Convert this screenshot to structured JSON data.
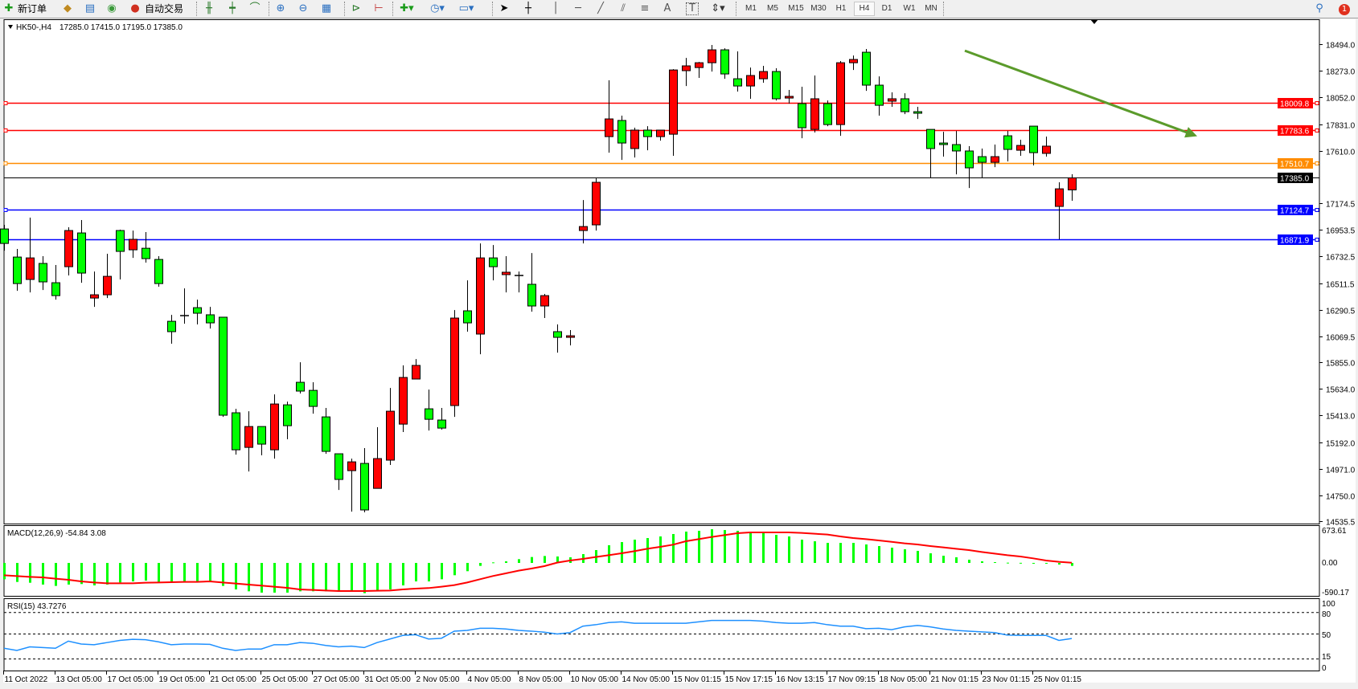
{
  "toolbar": {
    "new_order_label": "新订单",
    "auto_trading_label": "自动交易",
    "timeframes": [
      "M1",
      "M5",
      "M15",
      "M30",
      "H1",
      "H4",
      "D1",
      "W1",
      "MN"
    ],
    "active_timeframe": "H4",
    "notification_count": "1",
    "icons": [
      "new-order-icon",
      "market-watch-icon",
      "navigator-icon",
      "signals-icon",
      "auto-trading-icon",
      "bar-chart-icon",
      "candlestick-icon",
      "line-chart-icon",
      "zoom-in-icon",
      "zoom-out-icon",
      "tile-windows-icon",
      "autoscroll-icon",
      "chart-shift-icon",
      "indicators-icon",
      "periods-icon",
      "templates-icon",
      "cursor-icon",
      "crosshair-icon",
      "vertical-line-icon",
      "horizontal-line-icon",
      "trendline-icon",
      "channel-icon",
      "fibonacci-icon",
      "text-icon",
      "text-label-icon",
      "arrows-icon",
      "search-icon",
      "notification-icon"
    ]
  },
  "chart": {
    "symbol": "HK50-,H4",
    "ohlc_text": "17285.0 17415.0 17195.0 17385.0",
    "colors": {
      "bull": "#ff0000",
      "bear": "#00ff00",
      "macd_hist": "#00ff00",
      "macd_signal": "#ff0000",
      "rsi": "#1e90ff",
      "trend_arrow": "#5b9b2b"
    }
  },
  "chart_data": {
    "type": "candlestick",
    "ohlc": [
      [
        16961,
        16995,
        16781,
        16841
      ],
      [
        16728,
        16795,
        16448,
        16508
      ],
      [
        16542,
        17055,
        16435,
        16721
      ],
      [
        16675,
        16735,
        16455,
        16522
      ],
      [
        16515,
        16662,
        16375,
        16408
      ],
      [
        16648,
        16975,
        16575,
        16948
      ],
      [
        16928,
        17035,
        16515,
        16595
      ],
      [
        16388,
        16608,
        16315,
        16415
      ],
      [
        16415,
        16755,
        16388,
        16568
      ],
      [
        16948,
        16955,
        16542,
        16775
      ],
      [
        16788,
        16948,
        16721,
        16875
      ],
      [
        16801,
        16935,
        16682,
        16715
      ],
      [
        16708,
        16735,
        16482,
        16508
      ],
      [
        16195,
        16248,
        16009,
        16109
      ],
      [
        16242,
        16468,
        16175,
        16242
      ],
      [
        16308,
        16375,
        16169,
        16262
      ],
      [
        16249,
        16315,
        16135,
        16182
      ],
      [
        16229,
        16229,
        15402,
        15416
      ],
      [
        15436,
        15469,
        15089,
        15129
      ],
      [
        15149,
        15449,
        14949,
        15322
      ],
      [
        15322,
        15322,
        15083,
        15176
      ],
      [
        15129,
        15589,
        15056,
        15509
      ],
      [
        15502,
        15529,
        15216,
        15329
      ],
      [
        15689,
        15855,
        15596,
        15616
      ],
      [
        15622,
        15689,
        15429,
        15489
      ],
      [
        15402,
        15476,
        15096,
        15116
      ],
      [
        15096,
        15096,
        14796,
        14883
      ],
      [
        14956,
        15056,
        14616,
        15029
      ],
      [
        15016,
        15143,
        14610,
        14630
      ],
      [
        14809,
        15316,
        14809,
        15056
      ],
      [
        15043,
        15642,
        15003,
        15449
      ],
      [
        15342,
        15829,
        15276,
        15729
      ],
      [
        15716,
        15882,
        15716,
        15829
      ],
      [
        15469,
        15629,
        15289,
        15382
      ],
      [
        15376,
        15476,
        15296,
        15309
      ],
      [
        15496,
        16288,
        15402,
        16222
      ],
      [
        16282,
        16535,
        16109,
        16182
      ],
      [
        16089,
        16841,
        15922,
        16721
      ],
      [
        16721,
        16828,
        16535,
        16648
      ],
      [
        16582,
        16735,
        16435,
        16602
      ],
      [
        16575,
        16608,
        16435,
        16575
      ],
      [
        16502,
        16761,
        16275,
        16322
      ],
      [
        16322,
        16422,
        16222,
        16408
      ],
      [
        16109,
        16169,
        15935,
        16062
      ],
      [
        16062,
        16122,
        15995,
        16075
      ],
      [
        16948,
        17201,
        16841,
        16981
      ],
      [
        16995,
        17388,
        16948,
        17348
      ],
      [
        17727,
        18194,
        17594,
        17874
      ],
      [
        17861,
        17901,
        17534,
        17674
      ],
      [
        17628,
        17801,
        17554,
        17781
      ],
      [
        17781,
        17814,
        17614,
        17727
      ],
      [
        17727,
        17781,
        17694,
        17781
      ],
      [
        17747,
        18287,
        17568,
        18280
      ],
      [
        18274,
        18380,
        18147,
        18314
      ],
      [
        18300,
        18347,
        18214,
        18340
      ],
      [
        18340,
        18487,
        18267,
        18447
      ],
      [
        18447,
        18460,
        18207,
        18247
      ],
      [
        18207,
        18434,
        18101,
        18147
      ],
      [
        18147,
        18300,
        18041,
        18234
      ],
      [
        18207,
        18314,
        18174,
        18267
      ],
      [
        18267,
        18294,
        18027,
        18041
      ],
      [
        18047,
        18114,
        18001,
        18061
      ],
      [
        18001,
        18141,
        17714,
        17801
      ],
      [
        17787,
        18234,
        17761,
        18041
      ],
      [
        18001,
        18027,
        17814,
        17827
      ],
      [
        17827,
        18354,
        17734,
        18340
      ],
      [
        18340,
        18400,
        18280,
        18367
      ],
      [
        18427,
        18454,
        18107,
        18154
      ],
      [
        18154,
        18227,
        17901,
        17987
      ],
      [
        18021,
        18094,
        17974,
        18041
      ],
      [
        18041,
        18087,
        17914,
        17934
      ],
      [
        17934,
        17974,
        17874,
        17921
      ],
      [
        17787,
        17787,
        17388,
        17628
      ],
      [
        17674,
        17767,
        17561,
        17661
      ],
      [
        17661,
        17774,
        17414,
        17608
      ],
      [
        17608,
        17648,
        17301,
        17468
      ],
      [
        17561,
        17628,
        17388,
        17514
      ],
      [
        17514,
        17661,
        17474,
        17561
      ],
      [
        17734,
        17774,
        17521,
        17621
      ],
      [
        17614,
        17701,
        17568,
        17654
      ],
      [
        17814,
        17814,
        17488,
        17594
      ],
      [
        17588,
        17727,
        17561,
        17648
      ],
      [
        17148,
        17348,
        16875,
        17294
      ],
      [
        17285,
        17415,
        17195,
        17385
      ]
    ],
    "price_ticks": [
      "18494.0",
      "18273.0",
      "18052.0",
      "17831.0",
      "17610.0",
      "17174.5",
      "16953.5",
      "16732.5",
      "16511.5",
      "16290.5",
      "16069.5",
      "15855.0",
      "15634.0",
      "15413.0",
      "15192.0",
      "14971.0",
      "14750.0",
      "14535.5"
    ],
    "ylim": [
      14535.5,
      18494.0
    ],
    "time_labels": [
      "11 Oct 2022",
      "13 Oct 05:00",
      "17 Oct 05:00",
      "19 Oct 05:00",
      "21 Oct 05:00",
      "25 Oct 05:00",
      "27 Oct 05:00",
      "31 Oct 05:00",
      "2 Nov 05:00",
      "4 Nov 05:00",
      "8 Nov 05:00",
      "10 Nov 05:00",
      "14 Nov 05:00",
      "15 Nov 01:15",
      "15 Nov 17:15",
      "16 Nov 13:15",
      "17 Nov 09:15",
      "18 Nov 05:00",
      "21 Nov 01:15",
      "23 Nov 01:15",
      "25 Nov 01:15"
    ],
    "levels": [
      {
        "price": 18009.8,
        "label": "18009.8",
        "color": "#ff0000"
      },
      {
        "price": 17783.6,
        "label": "17783.6",
        "color": "#ff0000"
      },
      {
        "price": 17510.7,
        "label": "17510.7",
        "color": "#ff8c00"
      },
      {
        "price": 17385.0,
        "label": "17385.0",
        "color": "#000000"
      },
      {
        "price": 17124.7,
        "label": "17124.7",
        "color": "#0000ff"
      },
      {
        "price": 16871.9,
        "label": "16871.9",
        "color": "#0000ff"
      }
    ],
    "trend_arrow": {
      "start_price": 18440,
      "end_price": 17730
    },
    "macd": {
      "label": "MACD(12,26,9) -54.84 3.08",
      "axis_labels": [
        "673.61",
        "0.00",
        "-590.17"
      ],
      "range": [
        -590.17,
        673.61
      ],
      "histogram": [
        -304,
        -354,
        -369,
        -403,
        -428,
        -403,
        -393,
        -418,
        -403,
        -364,
        -344,
        -329,
        -354,
        -359,
        -354,
        -354,
        -354,
        -428,
        -493,
        -528,
        -553,
        -553,
        -553,
        -528,
        -528,
        -528,
        -528,
        -518,
        -563,
        -528,
        -493,
        -418,
        -344,
        -344,
        -304,
        -229,
        -154,
        -55,
        10,
        30,
        70,
        110,
        129,
        120,
        105,
        164,
        239,
        329,
        388,
        433,
        463,
        493,
        538,
        583,
        598,
        627,
        612,
        598,
        583,
        558,
        523,
        493,
        433,
        403,
        373,
        373,
        373,
        344,
        314,
        284,
        254,
        224,
        179,
        134,
        105,
        60,
        30,
        15,
        5,
        2,
        -5,
        -10,
        -30,
        -54.84
      ],
      "signal": [
        -229,
        -244,
        -259,
        -269,
        -294,
        -314,
        -344,
        -364,
        -379,
        -379,
        -379,
        -369,
        -364,
        -359,
        -354,
        -354,
        -344,
        -364,
        -383,
        -403,
        -423,
        -443,
        -463,
        -493,
        -503,
        -513,
        -523,
        -523,
        -523,
        -518,
        -513,
        -493,
        -478,
        -468,
        -443,
        -413,
        -364,
        -304,
        -244,
        -194,
        -144,
        -105,
        -60,
        5,
        45,
        75,
        110,
        144,
        179,
        219,
        264,
        299,
        339,
        403,
        443,
        483,
        518,
        553,
        568,
        568,
        568,
        568,
        558,
        543,
        528,
        493,
        463,
        443,
        418,
        393,
        364,
        344,
        314,
        289,
        264,
        239,
        204,
        174,
        144,
        120,
        85,
        45,
        20,
        3.08
      ]
    },
    "rsi": {
      "label": "RSI(15) 43.7276",
      "axis_labels": [
        "100",
        "80",
        "50",
        "15",
        "0"
      ],
      "levels": [
        80,
        50,
        15
      ],
      "values": [
        30,
        27,
        32,
        31,
        30,
        40,
        36,
        35,
        38,
        41,
        42.6,
        42,
        39,
        35,
        36,
        36,
        35.5,
        30,
        27,
        29,
        29,
        35,
        35,
        38,
        37,
        34,
        32,
        33,
        31,
        38,
        43,
        48,
        49,
        43,
        44,
        54,
        55,
        58,
        58,
        57,
        55,
        54,
        52.5,
        50,
        52,
        61,
        63,
        66,
        67,
        65,
        65,
        65,
        65,
        65,
        67,
        69,
        69,
        69,
        69,
        68,
        66,
        65,
        65,
        66,
        63,
        61,
        61,
        57.5,
        58,
        56,
        60,
        62,
        60,
        57,
        55,
        54,
        53,
        52,
        48.5,
        48,
        48,
        48,
        41,
        43.7276
      ]
    }
  }
}
